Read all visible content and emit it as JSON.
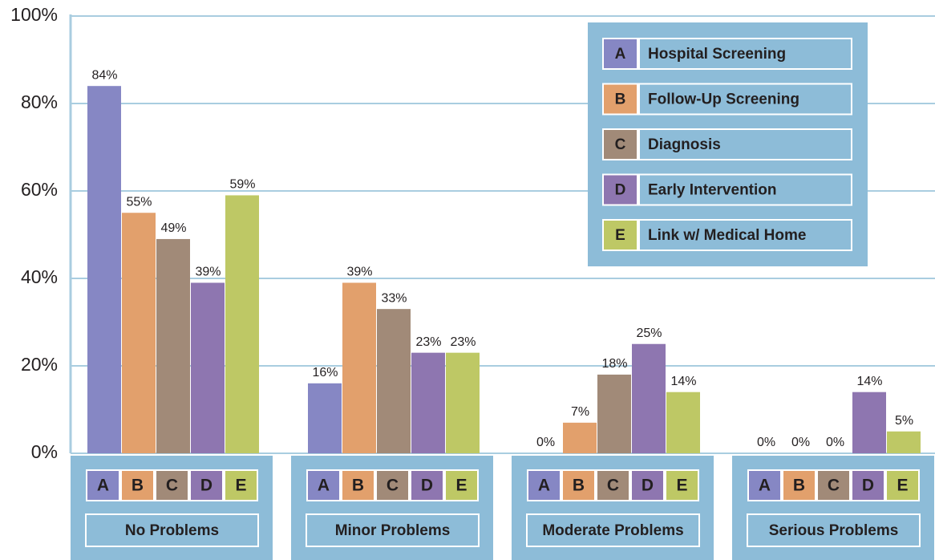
{
  "chart_data": {
    "type": "bar",
    "categories": [
      "No Problems",
      "Minor Problems",
      "Moderate Problems",
      "Serious Problems"
    ],
    "series": [
      {
        "name": "Hospital Screening",
        "letter": "A",
        "color": "#8687c4",
        "values": [
          84,
          16,
          0,
          0
        ],
        "value_labels": [
          "84%",
          "16%",
          "0%",
          "0%"
        ]
      },
      {
        "name": "Follow-Up Screening",
        "letter": "B",
        "color": "#e2a06c",
        "values": [
          55,
          39,
          7,
          0
        ],
        "value_labels": [
          "55%",
          "39%",
          "7%",
          "0%"
        ]
      },
      {
        "name": "Diagnosis",
        "letter": "C",
        "color": "#a18a78",
        "values": [
          49,
          33,
          18,
          0
        ],
        "value_labels": [
          "49%",
          "33%",
          "18%",
          "0%"
        ]
      },
      {
        "name": "Early Intervention",
        "letter": "D",
        "color": "#8e76b0",
        "values": [
          39,
          23,
          25,
          14
        ],
        "value_labels": [
          "39%",
          "23%",
          "25%",
          "14%"
        ]
      },
      {
        "name": "Link w/ Medical Home",
        "letter": "E",
        "color": "#bec865",
        "values": [
          59,
          23,
          14,
          5
        ],
        "value_labels": [
          "59%",
          "23%",
          "14%",
          "5%"
        ]
      }
    ],
    "ylim": [
      0,
      100
    ],
    "yticks": [
      {
        "value": 0,
        "label": "0%"
      },
      {
        "value": 20,
        "label": "20%"
      },
      {
        "value": 40,
        "label": "40%"
      },
      {
        "value": 60,
        "label": "60%"
      },
      {
        "value": 80,
        "label": "80%"
      },
      {
        "value": 100,
        "label": "100%"
      }
    ],
    "grid": true
  }
}
